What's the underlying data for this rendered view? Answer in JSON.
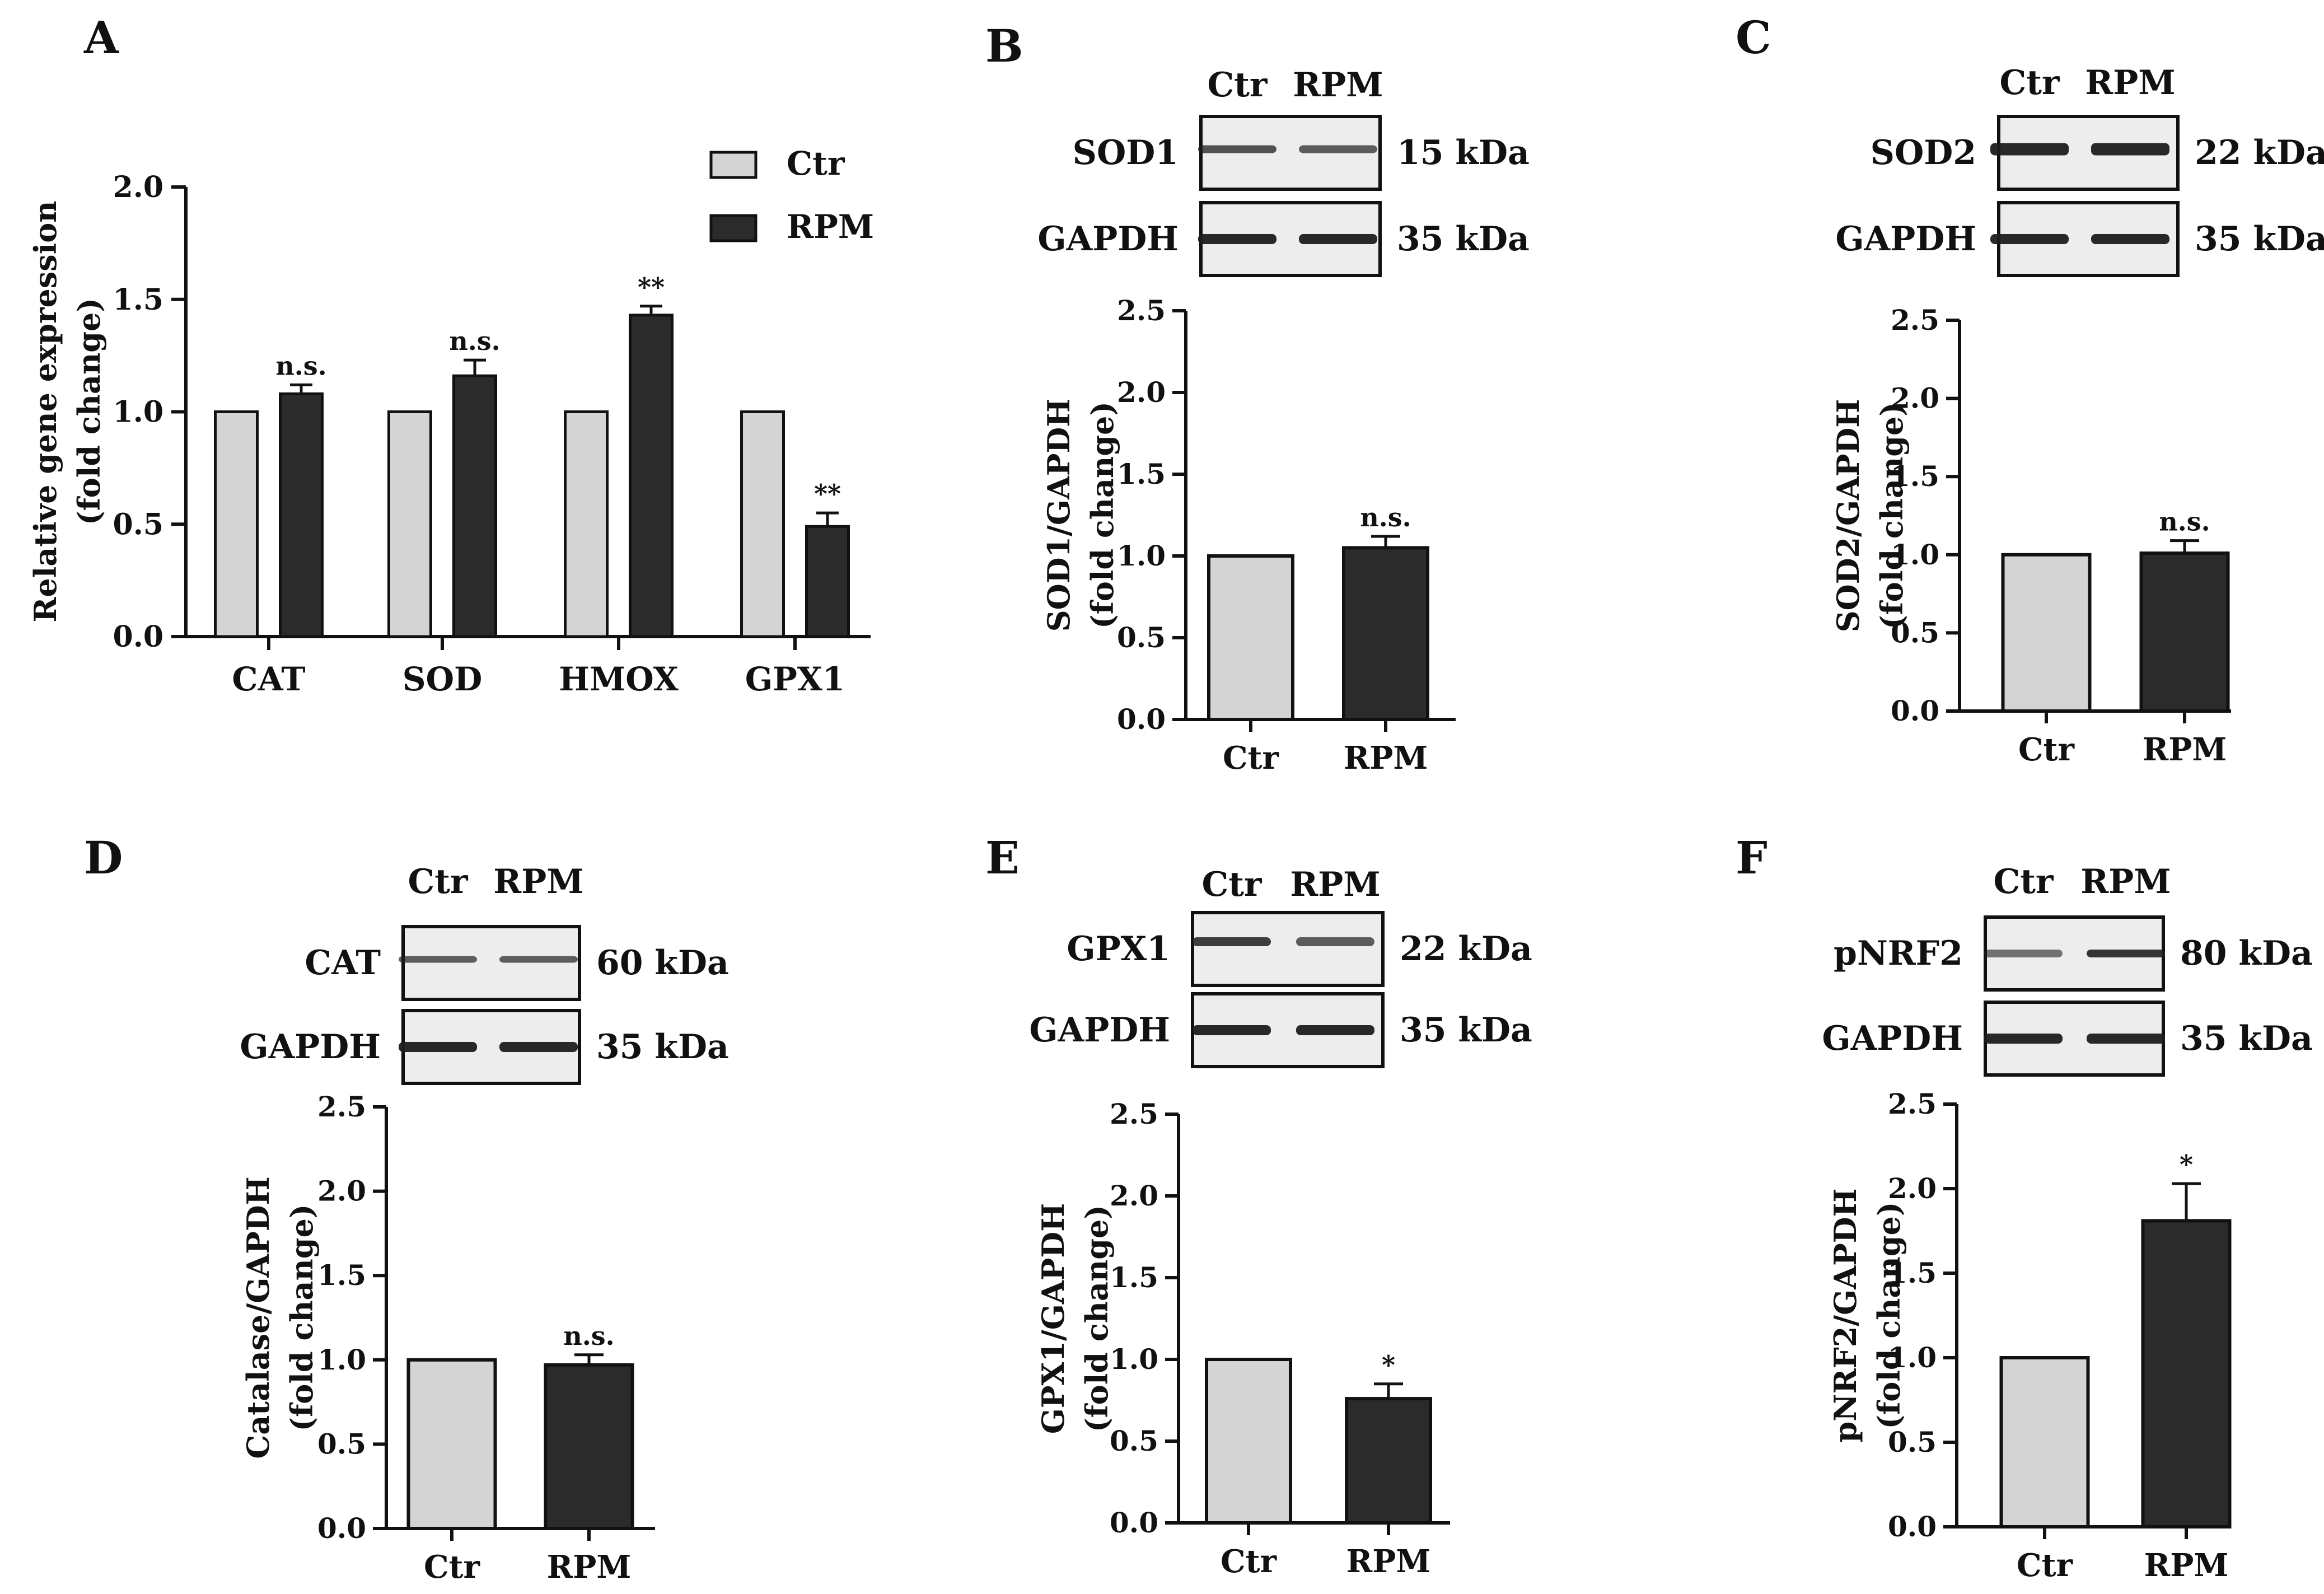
{
  "colors": {
    "ctr": "#d4d4d4",
    "rpm": "#2b2b2b",
    "axis": "#111111",
    "blot_bg": "#ededed",
    "band": "#1e1e1e"
  },
  "lanes": {
    "ctr": "Ctr",
    "rpm": "RPM"
  },
  "chart_data": [
    {
      "panel": "A",
      "type": "bar",
      "categories": [
        "CAT",
        "SOD",
        "HMOX",
        "GPX1"
      ],
      "series": [
        {
          "name": "Ctr",
          "values": [
            1.0,
            1.0,
            1.0,
            1.0
          ],
          "errors": [
            0,
            0,
            0,
            0
          ]
        },
        {
          "name": "RPM",
          "values": [
            1.08,
            1.16,
            1.43,
            0.49
          ],
          "errors": [
            0.04,
            0.07,
            0.04,
            0.06
          ]
        }
      ],
      "annotations": [
        "n.s.",
        "n.s.",
        "**",
        "**"
      ],
      "ylabel": [
        "Relative gene expression",
        "(fold change)"
      ],
      "ylim": [
        0,
        2.0
      ],
      "yticks": [
        "0.0",
        "0.5",
        "1.0",
        "1.5",
        "2.0"
      ],
      "legend": [
        "Ctr",
        "RPM"
      ],
      "legend_position": "top-right"
    },
    {
      "panel": "B",
      "type": "bar",
      "blot": {
        "target": "SOD1",
        "target_kda": "15 kDa",
        "loading": "GAPDH",
        "loading_kda": "35 kDa"
      },
      "categories": [
        "Ctr",
        "RPM"
      ],
      "values": [
        1.0,
        1.05
      ],
      "errors": [
        0,
        0.07
      ],
      "annotation": "n.s.",
      "ylabel": [
        "SOD1/GAPDH",
        "(fold change)"
      ],
      "ylim": [
        0,
        2.5
      ],
      "yticks": [
        "0.0",
        "0.5",
        "1.0",
        "1.5",
        "2.0",
        "2.5"
      ]
    },
    {
      "panel": "C",
      "type": "bar",
      "blot": {
        "target": "SOD2",
        "target_kda": "22 kDa",
        "loading": "GAPDH",
        "loading_kda": "35 kDa"
      },
      "categories": [
        "Ctr",
        "RPM"
      ],
      "values": [
        1.0,
        1.01
      ],
      "errors": [
        0,
        0.08
      ],
      "annotation": "n.s.",
      "ylabel": [
        "SOD2/GAPDH",
        "(fold change)"
      ],
      "ylim": [
        0,
        2.5
      ],
      "yticks": [
        "0.0",
        "0.5",
        "1.0",
        "1.5",
        "2.0",
        "2.5"
      ]
    },
    {
      "panel": "D",
      "type": "bar",
      "blot": {
        "target": "CAT",
        "target_kda": "60 kDa",
        "loading": "GAPDH",
        "loading_kda": "35 kDa"
      },
      "categories": [
        "Ctr",
        "RPM"
      ],
      "values": [
        1.0,
        0.97
      ],
      "errors": [
        0,
        0.06
      ],
      "annotation": "n.s.",
      "ylabel": [
        "Catalase/GAPDH",
        "(fold change)"
      ],
      "ylim": [
        0,
        2.5
      ],
      "yticks": [
        "0.0",
        "0.5",
        "1.0",
        "1.5",
        "2.0",
        "2.5"
      ]
    },
    {
      "panel": "E",
      "type": "bar",
      "blot": {
        "target": "GPX1",
        "target_kda": "22 kDa",
        "loading": "GAPDH",
        "loading_kda": "35 kDa"
      },
      "categories": [
        "Ctr",
        "RPM"
      ],
      "values": [
        1.0,
        0.76
      ],
      "errors": [
        0,
        0.09
      ],
      "annotation": "*",
      "ylabel": [
        "GPX1/GAPDH",
        "(fold change)"
      ],
      "ylim": [
        0,
        2.5
      ],
      "yticks": [
        "0.0",
        "0.5",
        "1.0",
        "1.5",
        "2.0",
        "2.5"
      ]
    },
    {
      "panel": "F",
      "type": "bar",
      "blot": {
        "target": "pNRF2",
        "target_kda": "80 kDa",
        "loading": "GAPDH",
        "loading_kda": "35 kDa"
      },
      "categories": [
        "Ctr",
        "RPM"
      ],
      "values": [
        1.0,
        1.81
      ],
      "errors": [
        0,
        0.22
      ],
      "annotation": "*",
      "ylabel": [
        "pNRF2/GAPDH",
        "(fold change)"
      ],
      "ylim": [
        0,
        2.5
      ],
      "yticks": [
        "0.0",
        "0.5",
        "1.0",
        "1.5",
        "2.0",
        "2.5"
      ]
    }
  ]
}
